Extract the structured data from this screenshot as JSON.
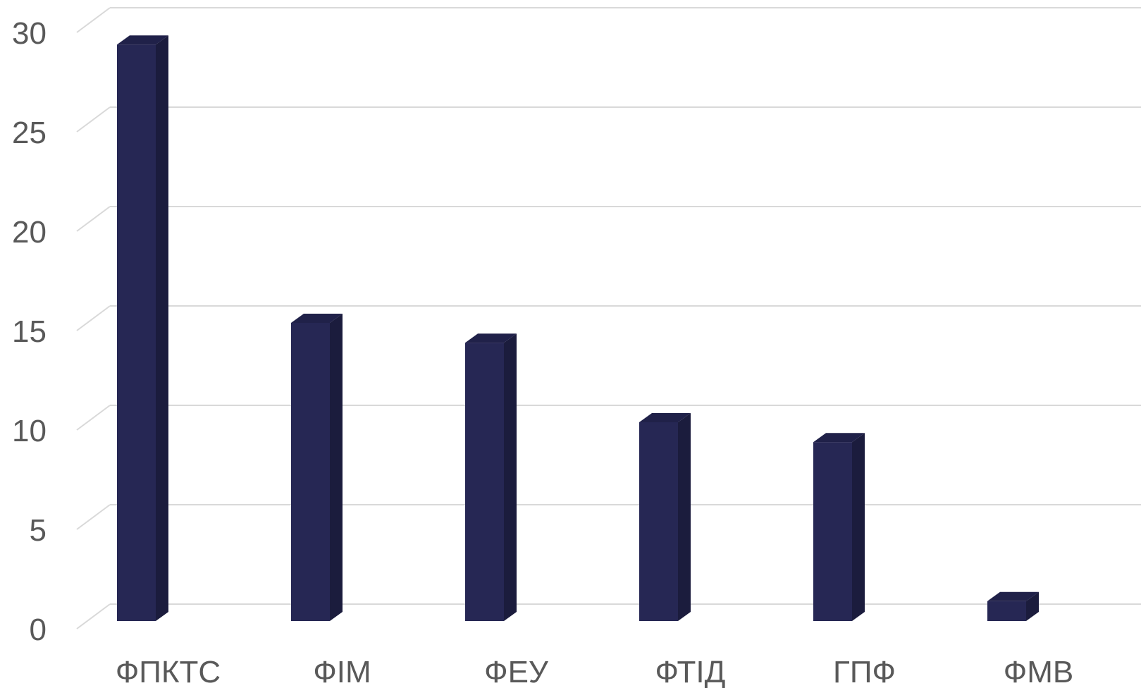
{
  "chart_data": {
    "type": "bar",
    "categories": [
      "ФПКТС",
      "ФІМ",
      "ФЕУ",
      "ФТІД",
      "ГПФ",
      "ФМВ"
    ],
    "values": [
      29,
      15,
      14,
      10,
      9,
      1
    ],
    "ylim": [
      0,
      30
    ],
    "yticks": [
      "0",
      "5",
      "10",
      "15",
      "20",
      "25",
      "30"
    ],
    "grid": true,
    "legend": "none",
    "bar_colors": {
      "front": "#262754",
      "side": "#1b1c3d",
      "top": "#202149"
    },
    "grid_color": "#d9d9d9",
    "label_color": "#595959"
  }
}
